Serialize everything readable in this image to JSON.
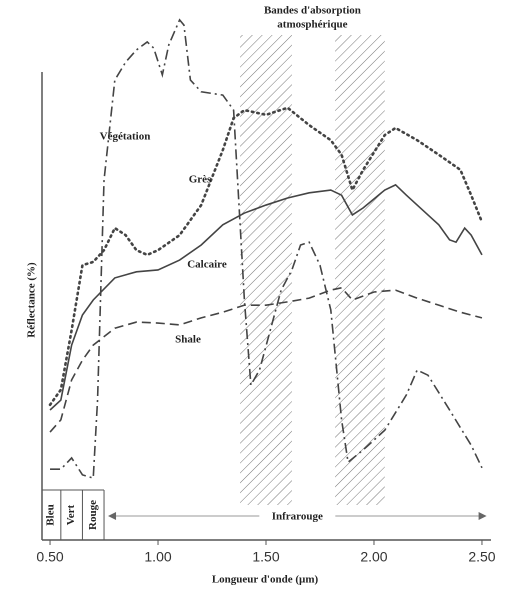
{
  "chart_data": {
    "type": "line",
    "xlabel": "Longueur d'onde (µm)",
    "ylabel": "Réflectance (%)",
    "xlim": [
      0.46,
      2.54
    ],
    "ylim": [
      0,
      100
    ],
    "xticks": [
      {
        "value": 0.5,
        "label": "0.50"
      },
      {
        "value": 1.0,
        "label": "1.00"
      },
      {
        "value": 1.5,
        "label": "1.50"
      },
      {
        "value": 2.0,
        "label": "2.00"
      },
      {
        "value": 2.5,
        "label": "2.50"
      }
    ],
    "absorption_bands": {
      "label": [
        "Bandes d'absorption",
        "atmosphérique"
      ],
      "ranges": [
        [
          1.38,
          1.62
        ],
        [
          1.82,
          2.05
        ]
      ]
    },
    "regions": [
      {
        "label": "Bleu",
        "range": [
          0.46,
          0.55
        ]
      },
      {
        "label": "Vert",
        "range": [
          0.55,
          0.65
        ]
      },
      {
        "label": "Rouge",
        "range": [
          0.65,
          0.75
        ]
      },
      {
        "label": "Infrarouge",
        "range": [
          0.75,
          2.54
        ]
      }
    ],
    "series": [
      {
        "name": "Végétation",
        "color": "#444444",
        "dash": "dashdot",
        "x": [
          0.5,
          0.55,
          0.6,
          0.65,
          0.7,
          0.72,
          0.75,
          0.8,
          0.85,
          0.9,
          0.95,
          0.98,
          1.02,
          1.05,
          1.1,
          1.12,
          1.15,
          1.2,
          1.3,
          1.35,
          1.4,
          1.43,
          1.47,
          1.52,
          1.57,
          1.62,
          1.66,
          1.7,
          1.75,
          1.8,
          1.85,
          1.88,
          1.95,
          2.05,
          2.15,
          2.2,
          2.25,
          2.35,
          2.45,
          2.5
        ],
        "values": [
          4,
          4,
          6.4,
          2.8,
          2.1,
          18.7,
          65.5,
          86.8,
          90.6,
          93.2,
          94.9,
          93.6,
          87.9,
          94.3,
          99.6,
          98.5,
          86.8,
          84.3,
          83.6,
          80.4,
          40,
          21.9,
          25.1,
          33.6,
          42.1,
          46.4,
          51.7,
          52.3,
          47.4,
          37.9,
          14.5,
          5.5,
          8.1,
          12.3,
          19.8,
          25.1,
          24,
          16.6,
          9.1,
          4.3
        ]
      },
      {
        "name": "Grès",
        "color": "#444444",
        "dash": "dotted",
        "x": [
          0.5,
          0.55,
          0.6,
          0.65,
          0.7,
          0.75,
          0.8,
          0.85,
          0.9,
          0.95,
          1.0,
          1.1,
          1.2,
          1.3,
          1.35,
          1.4,
          1.5,
          1.6,
          1.7,
          1.8,
          1.85,
          1.9,
          1.95,
          2.05,
          2.1,
          2.2,
          2.3,
          2.4,
          2.45,
          2.5
        ],
        "values": [
          17.7,
          20.9,
          33.6,
          47.4,
          48.1,
          50.6,
          55.3,
          53.8,
          50.6,
          49.6,
          50.6,
          53.8,
          60.2,
          71.9,
          78.7,
          80.4,
          79.4,
          80.9,
          77.2,
          74,
          70.9,
          63.4,
          67.7,
          75.1,
          76.6,
          74,
          70.9,
          67.7,
          62.3,
          56.6
        ]
      },
      {
        "name": "Calcaire",
        "color": "#444444",
        "dash": "solid",
        "x": [
          0.5,
          0.55,
          0.6,
          0.65,
          0.7,
          0.8,
          0.9,
          1.0,
          1.1,
          1.2,
          1.3,
          1.4,
          1.5,
          1.6,
          1.7,
          1.8,
          1.85,
          1.9,
          1.95,
          2.05,
          2.1,
          2.15,
          2.25,
          2.3,
          2.35,
          2.38,
          2.42,
          2.45,
          2.5
        ],
        "values": [
          16.6,
          18.7,
          30.4,
          36.8,
          40,
          44.7,
          46,
          46.4,
          48.5,
          51.7,
          56,
          58.5,
          60.2,
          61.7,
          62.8,
          63.4,
          62.3,
          58.1,
          59.6,
          63.4,
          64.5,
          62.3,
          58.1,
          56,
          52.8,
          52.3,
          55.3,
          53.8,
          49.6
        ]
      },
      {
        "name": "Shale",
        "color": "#444444",
        "dash": "dashed",
        "x": [
          0.5,
          0.55,
          0.6,
          0.65,
          0.7,
          0.8,
          0.9,
          1.0,
          1.1,
          1.2,
          1.3,
          1.4,
          1.5,
          1.6,
          1.7,
          1.8,
          1.85,
          1.9,
          2.0,
          2.1,
          2.2,
          2.3,
          2.4,
          2.5
        ],
        "values": [
          11.9,
          14.5,
          23,
          27.2,
          30.4,
          34,
          35.3,
          35.1,
          34.7,
          36.2,
          37.4,
          38.9,
          38.9,
          39.6,
          40.4,
          42.1,
          42.6,
          40,
          41.7,
          42.1,
          40.4,
          38.9,
          37.4,
          36.2
        ]
      }
    ]
  }
}
